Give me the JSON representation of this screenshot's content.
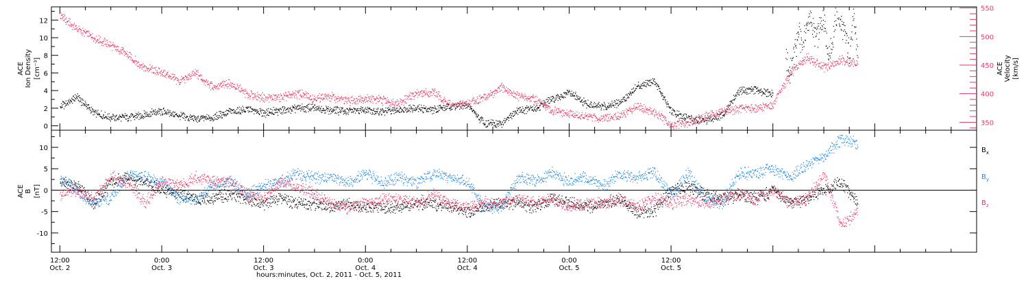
{
  "colors": {
    "black": "#000000",
    "pink": "#e8365f",
    "blue": "#1f87e0"
  },
  "chart_data": [
    {
      "type": "scatter",
      "panel": "top",
      "left_axis": {
        "label_line1": "ACE",
        "label_line2": "Ion Density",
        "label_line3": "[cm⁻³]",
        "ylim": [
          -0.5,
          13.5
        ],
        "ticks": [
          0,
          2,
          4,
          6,
          8,
          10,
          12
        ]
      },
      "right_axis": {
        "label_line1": "ACE",
        "label_line2": "Velocity",
        "label_line3": "[km/s]",
        "ylim": [
          336,
          552
        ],
        "ticks": [
          350,
          400,
          450,
          500,
          550
        ]
      },
      "series": [
        {
          "color": "#000000",
          "axis": "left",
          "x": [
            0,
            2,
            4,
            6,
            8,
            10,
            12,
            14,
            16,
            18,
            20,
            22,
            24,
            26,
            28,
            30,
            32,
            34,
            36,
            38,
            40,
            42,
            44,
            46,
            48,
            50,
            52,
            54,
            56,
            58,
            60,
            62,
            64,
            66,
            68,
            70,
            72,
            74,
            76,
            78,
            80,
            82,
            84
          ],
          "y": [
            2.2,
            3.3,
            1.5,
            1.0,
            1.0,
            1.3,
            1.7,
            1.2,
            0.8,
            1.0,
            1.6,
            1.9,
            1.5,
            1.8,
            2.0,
            2.1,
            1.8,
            1.7,
            1.9,
            1.6,
            1.9,
            2.0,
            1.9,
            2.2,
            2.4,
            0.3,
            0.3,
            1.8,
            2.0,
            3.0,
            3.8,
            2.5,
            2.2,
            2.7,
            4.5,
            5.2,
            1.6,
            0.8,
            0.7,
            1.2,
            4.0,
            4.1,
            3.6
          ]
        },
        {
          "color": "#000000",
          "axis": "left",
          "x": [
            85.5,
            86,
            86.5,
            87,
            87.5,
            88,
            88.5,
            89,
            89.5,
            90,
            90.5,
            91,
            91.5,
            92,
            92.5,
            93,
            93.5,
            94
          ],
          "y": [
            7.5,
            6.0,
            8.5,
            10.5,
            9.0,
            11.5,
            12.0,
            10.0,
            11.0,
            12.5,
            8.0,
            9.5,
            12.8,
            11.5,
            10.0,
            8.5,
            12.0,
            8.0
          ]
        },
        {
          "color": "#e8365f",
          "axis": "right",
          "x": [
            0,
            2,
            4,
            6,
            8,
            10,
            12,
            14,
            16,
            18,
            20,
            22,
            24,
            26,
            28,
            30,
            32,
            34,
            36,
            38,
            40,
            42,
            44,
            46,
            48,
            50,
            52,
            54,
            56,
            58,
            60,
            62,
            64,
            66,
            68,
            70,
            72,
            74,
            76,
            78,
            80,
            82,
            84,
            86,
            88,
            90,
            92,
            94
          ],
          "y": [
            537,
            514,
            498,
            485,
            468,
            445,
            438,
            422,
            436,
            412,
            418,
            400,
            393,
            394,
            400,
            393,
            395,
            388,
            392,
            389,
            384,
            401,
            403,
            380,
            384,
            393,
            411,
            396,
            390,
            370,
            365,
            360,
            357,
            362,
            380,
            367,
            345,
            350,
            360,
            370,
            374,
            375,
            380,
            435,
            464,
            445,
            460,
            452
          ]
        }
      ]
    },
    {
      "type": "scatter",
      "panel": "bottom",
      "left_axis": {
        "label_line1": "ACE",
        "label_line2": "B",
        "label_line3": "[nT]",
        "ylim": [
          -14.5,
          14
        ],
        "ticks": [
          -10,
          -5,
          0,
          5,
          10
        ]
      },
      "legend": [
        "B",
        "B",
        "B"
      ],
      "legend_subscripts": [
        "x",
        "y",
        "z"
      ],
      "series": [
        {
          "color": "#000000",
          "x": [
            0,
            2,
            4,
            6,
            8,
            10,
            12,
            14,
            16,
            18,
            20,
            22,
            24,
            26,
            28,
            30,
            32,
            34,
            36,
            38,
            40,
            42,
            44,
            46,
            48,
            50,
            52,
            54,
            56,
            58,
            60,
            62,
            64,
            66,
            68,
            70,
            72,
            74,
            76,
            78,
            80,
            82,
            84,
            86,
            88,
            90,
            92,
            94
          ],
          "y": [
            2,
            1,
            -3,
            2,
            3,
            2,
            0,
            -1,
            -2,
            -2,
            -1,
            -2,
            -3,
            -2,
            -3,
            -3,
            -4,
            -3,
            -4,
            -4,
            -4,
            -3,
            -3,
            -4,
            -5,
            -4,
            -3,
            -3,
            -4,
            -2,
            -3,
            -4,
            -3,
            -2,
            -5,
            -5,
            0,
            1,
            -1,
            -2,
            -1,
            -2,
            0,
            -3,
            -2,
            0,
            2,
            -3
          ]
        },
        {
          "color": "#1f87e0",
          "x": [
            0,
            2,
            4,
            6,
            8,
            10,
            12,
            14,
            16,
            18,
            20,
            22,
            24,
            26,
            28,
            30,
            32,
            34,
            36,
            38,
            40,
            42,
            44,
            46,
            48,
            50,
            52,
            54,
            56,
            58,
            60,
            62,
            64,
            66,
            68,
            70,
            72,
            74,
            76,
            78,
            80,
            82,
            84,
            86,
            88,
            90,
            92,
            94
          ],
          "y": [
            3,
            0,
            -3,
            -2,
            4,
            3,
            2,
            -2,
            -2,
            1,
            2,
            -1,
            1,
            2,
            4,
            3,
            3,
            2,
            4,
            2,
            3,
            2,
            4,
            3,
            2,
            -4,
            -4,
            3,
            2,
            4,
            2,
            3,
            1,
            4,
            3,
            4,
            -1,
            4,
            -2,
            -3,
            4,
            4,
            5,
            3,
            6,
            8,
            12,
            11
          ]
        },
        {
          "color": "#e8365f",
          "x": [
            0,
            2,
            4,
            6,
            8,
            10,
            12,
            14,
            16,
            18,
            20,
            22,
            24,
            26,
            28,
            30,
            32,
            34,
            36,
            38,
            40,
            42,
            44,
            46,
            48,
            50,
            52,
            54,
            56,
            58,
            60,
            62,
            64,
            66,
            68,
            70,
            72,
            74,
            76,
            78,
            80,
            82,
            84,
            86,
            88,
            90,
            92,
            94
          ],
          "y": [
            -1,
            0,
            -2,
            3,
            2,
            -3,
            2,
            1,
            3,
            2,
            2,
            -1,
            -2,
            2,
            1,
            -1,
            -3,
            -4,
            -3,
            -2,
            -2,
            -3,
            -1,
            -3,
            -4,
            -3,
            -3,
            -2,
            -3,
            -2,
            -4,
            -3,
            -3,
            -2,
            -4,
            -2,
            -3,
            -2,
            -3,
            -2,
            -1,
            -2,
            0,
            -3,
            -2,
            4,
            -8,
            -5
          ]
        }
      ]
    }
  ],
  "x_axis": {
    "xlim": [
      -1,
      108
    ],
    "ticks": [
      {
        "h": 0,
        "time": "12:00",
        "date": "Oct. 2"
      },
      {
        "h": 12,
        "time": "0:00",
        "date": "Oct. 3"
      },
      {
        "h": 24,
        "time": "12:00",
        "date": "Oct. 3"
      },
      {
        "h": 36,
        "time": "0:00",
        "date": "Oct. 4"
      },
      {
        "h": 48,
        "time": "12:00",
        "date": "Oct. 4"
      },
      {
        "h": 60,
        "time": "0:00",
        "date": "Oct. 5"
      },
      {
        "h": 72,
        "time": "12:00",
        "date": "Oct. 5"
      }
    ],
    "title": "hours:minutes, Oct.  2, 2011 - Oct.  5, 2011"
  }
}
